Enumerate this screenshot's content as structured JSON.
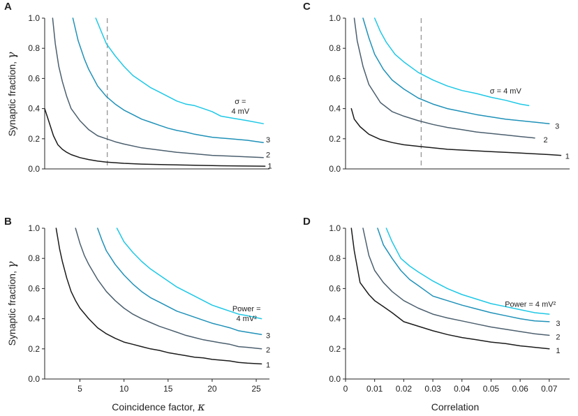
{
  "figure": {
    "ylabel_text": "Synaptic fraction, ",
    "ylabel_symbol": "γ"
  },
  "chart_data": [
    {
      "id": "A",
      "type": "line",
      "panel_label": "A",
      "xlabel_text": "",
      "xlabel_symbol": "",
      "ylabel_text": "Synaptic fraction, ",
      "ylabel_symbol": "γ",
      "xlim": [
        1,
        26.5
      ],
      "ylim": [
        0,
        1
      ],
      "xticks": [],
      "xtick_labels": [],
      "yticks": [
        0,
        0.2,
        0.4,
        0.6,
        0.8,
        1.0
      ],
      "ytick_labels": [
        "0.0",
        "0.2",
        "0.4",
        "0.6",
        "0.8",
        "1.0"
      ],
      "vline": 8.1,
      "annotation": {
        "lines": [
          "σ =",
          "4 mV"
        ],
        "x": 23.2,
        "y": 0.43
      },
      "series": [
        {
          "name": "1",
          "color": "#1a1a1a",
          "x": [
            1,
            1.5,
            2,
            2.5,
            3,
            3.5,
            4,
            5,
            6,
            7,
            8,
            10,
            12,
            15,
            18,
            21,
            24,
            26
          ],
          "y": [
            0.4,
            0.31,
            0.22,
            0.16,
            0.13,
            0.11,
            0.095,
            0.075,
            0.062,
            0.052,
            0.045,
            0.037,
            0.032,
            0.028,
            0.024,
            0.021,
            0.019,
            0.018
          ]
        },
        {
          "name": "2",
          "color": "#4b5f6e",
          "x": [
            1.9,
            2.2,
            2.6,
            3,
            3.5,
            4,
            5,
            6,
            7,
            8,
            9,
            10,
            12,
            14,
            16,
            18,
            20,
            22,
            24,
            25.8
          ],
          "y": [
            1.0,
            0.83,
            0.68,
            0.58,
            0.48,
            0.4,
            0.32,
            0.26,
            0.22,
            0.2,
            0.18,
            0.165,
            0.14,
            0.125,
            0.11,
            0.1,
            0.09,
            0.085,
            0.08,
            0.075
          ]
        },
        {
          "name": "3",
          "color": "#1f91b8",
          "x": [
            4.2,
            4.8,
            5.5,
            6,
            7,
            8,
            9,
            10,
            11,
            12,
            13,
            14,
            15,
            16,
            17,
            18,
            19,
            20,
            21,
            22,
            23,
            24,
            25.8
          ],
          "y": [
            1.0,
            0.85,
            0.73,
            0.66,
            0.55,
            0.48,
            0.43,
            0.39,
            0.36,
            0.33,
            0.31,
            0.29,
            0.27,
            0.255,
            0.245,
            0.23,
            0.22,
            0.21,
            0.205,
            0.2,
            0.195,
            0.19,
            0.175
          ]
        },
        {
          "name": "",
          "color": "#1ec8e6",
          "x": [
            6.8,
            7.5,
            8,
            9,
            10,
            11,
            12,
            13,
            14,
            15,
            16,
            17,
            18,
            19,
            20,
            21,
            22,
            23,
            24,
            25.8
          ],
          "y": [
            1.0,
            0.9,
            0.83,
            0.75,
            0.68,
            0.62,
            0.58,
            0.54,
            0.51,
            0.48,
            0.45,
            0.43,
            0.42,
            0.4,
            0.38,
            0.35,
            0.34,
            0.33,
            0.32,
            0.3
          ]
        }
      ],
      "curve_labels": [
        {
          "text": "1",
          "x": 26.3,
          "y": 0.02
        },
        {
          "text": "2",
          "x": 26.1,
          "y": 0.095
        },
        {
          "text": "3",
          "x": 26.1,
          "y": 0.195
        }
      ]
    },
    {
      "id": "B",
      "type": "line",
      "panel_label": "B",
      "xlabel_text": "Coincidence factor, ",
      "xlabel_symbol": "κ",
      "ylabel_text": "Synaptic fraction, ",
      "ylabel_symbol": "γ",
      "xlim": [
        1,
        26.5
      ],
      "ylim": [
        0,
        1
      ],
      "xticks": [
        5,
        10,
        15,
        20,
        25
      ],
      "xtick_labels": [
        "5",
        "10",
        "15",
        "20",
        "25"
      ],
      "yticks": [
        0,
        0.2,
        0.4,
        0.6,
        0.8,
        1.0
      ],
      "ytick_labels": [
        "0.0",
        "0.2",
        "0.4",
        "0.6",
        "0.8",
        "1.0"
      ],
      "vline": null,
      "annotation": {
        "lines": [
          "Power =",
          "4 mV²"
        ],
        "x": 23.9,
        "y": 0.45
      },
      "series": [
        {
          "name": "1",
          "color": "#1a1a1a",
          "x": [
            2.3,
            2.7,
            3,
            3.5,
            4,
            4.5,
            5,
            6,
            7,
            8,
            9,
            10,
            11,
            12,
            13,
            14,
            15,
            16,
            17,
            18,
            19,
            20,
            21,
            22,
            23,
            24,
            25.6
          ],
          "y": [
            1.0,
            0.86,
            0.78,
            0.67,
            0.58,
            0.52,
            0.47,
            0.4,
            0.34,
            0.3,
            0.27,
            0.245,
            0.23,
            0.215,
            0.2,
            0.19,
            0.175,
            0.165,
            0.155,
            0.145,
            0.14,
            0.13,
            0.125,
            0.12,
            0.11,
            0.105,
            0.1
          ]
        },
        {
          "name": "2",
          "color": "#4b5f6e",
          "x": [
            4.5,
            5,
            5.5,
            6,
            7,
            8,
            9,
            10,
            11,
            12,
            13,
            14,
            15,
            16,
            17,
            18,
            19,
            20,
            21,
            22,
            23,
            24,
            25.6
          ],
          "y": [
            1.0,
            0.9,
            0.82,
            0.76,
            0.66,
            0.58,
            0.52,
            0.47,
            0.43,
            0.4,
            0.375,
            0.35,
            0.33,
            0.31,
            0.29,
            0.275,
            0.26,
            0.25,
            0.24,
            0.23,
            0.215,
            0.21,
            0.2
          ]
        },
        {
          "name": "3",
          "color": "#1f91b8",
          "x": [
            7,
            7.5,
            8,
            9,
            10,
            11,
            12,
            13,
            14,
            15,
            16,
            17,
            18,
            19,
            20,
            21,
            22,
            23,
            24,
            25.6
          ],
          "y": [
            1.0,
            0.92,
            0.85,
            0.76,
            0.69,
            0.63,
            0.58,
            0.54,
            0.51,
            0.48,
            0.45,
            0.43,
            0.41,
            0.39,
            0.37,
            0.355,
            0.34,
            0.32,
            0.31,
            0.295
          ]
        },
        {
          "name": "",
          "color": "#1ec8e6",
          "x": [
            9.2,
            10,
            11,
            12,
            13,
            14,
            15,
            16,
            17,
            18,
            19,
            20,
            21,
            22,
            23,
            24,
            25.6
          ],
          "y": [
            1.0,
            0.91,
            0.84,
            0.78,
            0.73,
            0.69,
            0.65,
            0.61,
            0.58,
            0.55,
            0.52,
            0.49,
            0.47,
            0.45,
            0.43,
            0.42,
            0.4
          ]
        }
      ],
      "curve_labels": [
        {
          "text": "1",
          "x": 26.1,
          "y": 0.095
        },
        {
          "text": "2",
          "x": 26.1,
          "y": 0.195
        },
        {
          "text": "3",
          "x": 26.1,
          "y": 0.29
        }
      ]
    },
    {
      "id": "C",
      "type": "line",
      "panel_label": "C",
      "xlabel_text": "",
      "xlabel_symbol": "",
      "ylabel_text": "",
      "ylabel_symbol": "",
      "xlim": [
        0,
        0.077
      ],
      "ylim": [
        0,
        1
      ],
      "xticks": [],
      "xtick_labels": [],
      "yticks": [
        0,
        0.2,
        0.4,
        0.6,
        0.8,
        1.0
      ],
      "ytick_labels": [
        "0.0",
        "0.2",
        "0.4",
        "0.6",
        "0.8",
        "1.0"
      ],
      "vline": 0.026,
      "annotation": {
        "lines": [
          "σ = 4 mV"
        ],
        "x": 0.055,
        "y": 0.5
      },
      "series": [
        {
          "name": "1",
          "color": "#1a1a1a",
          "x": [
            0.002,
            0.003,
            0.005,
            0.008,
            0.012,
            0.016,
            0.02,
            0.025,
            0.03,
            0.035,
            0.04,
            0.045,
            0.05,
            0.055,
            0.06,
            0.065,
            0.07,
            0.074
          ],
          "y": [
            0.4,
            0.33,
            0.28,
            0.23,
            0.195,
            0.175,
            0.16,
            0.15,
            0.14,
            0.13,
            0.125,
            0.12,
            0.115,
            0.11,
            0.105,
            0.1,
            0.095,
            0.09
          ]
        },
        {
          "name": "2",
          "color": "#4b5f6e",
          "x": [
            0.003,
            0.004,
            0.006,
            0.008,
            0.012,
            0.016,
            0.02,
            0.025,
            0.03,
            0.035,
            0.04,
            0.045,
            0.05,
            0.055,
            0.06,
            0.065
          ],
          "y": [
            1.0,
            0.85,
            0.68,
            0.56,
            0.44,
            0.38,
            0.35,
            0.32,
            0.295,
            0.275,
            0.26,
            0.245,
            0.235,
            0.225,
            0.215,
            0.205
          ]
        },
        {
          "name": "3",
          "color": "#1f91b8",
          "x": [
            0.006,
            0.008,
            0.01,
            0.013,
            0.016,
            0.02,
            0.025,
            0.03,
            0.035,
            0.04,
            0.045,
            0.05,
            0.055,
            0.06,
            0.065,
            0.07
          ],
          "y": [
            1.0,
            0.87,
            0.76,
            0.66,
            0.59,
            0.53,
            0.47,
            0.43,
            0.4,
            0.38,
            0.36,
            0.345,
            0.33,
            0.32,
            0.31,
            0.3
          ]
        },
        {
          "name": "",
          "color": "#1ec8e6",
          "x": [
            0.01,
            0.012,
            0.014,
            0.017,
            0.02,
            0.025,
            0.03,
            0.035,
            0.04,
            0.045,
            0.05,
            0.055,
            0.06,
            0.063
          ],
          "y": [
            1.0,
            0.91,
            0.84,
            0.76,
            0.71,
            0.64,
            0.59,
            0.55,
            0.52,
            0.5,
            0.475,
            0.455,
            0.43,
            0.42
          ]
        }
      ],
      "curve_labels": [
        {
          "text": "1",
          "x": 0.0755,
          "y": 0.085
        },
        {
          "text": "2",
          "x": 0.068,
          "y": 0.195
        },
        {
          "text": "3",
          "x": 0.072,
          "y": 0.285
        }
      ]
    },
    {
      "id": "D",
      "type": "line",
      "panel_label": "D",
      "xlabel_text": "Correlation",
      "xlabel_symbol": "",
      "ylabel_text": "",
      "ylabel_symbol": "",
      "xlim": [
        0,
        0.077
      ],
      "ylim": [
        0,
        1
      ],
      "xticks": [
        0,
        0.01,
        0.02,
        0.03,
        0.04,
        0.05,
        0.06,
        0.07
      ],
      "xtick_labels": [
        "0",
        "0.01",
        "0.02",
        "0.03",
        "0.04",
        "0.05",
        "0.06",
        "0.07"
      ],
      "yticks": [
        0,
        0.2,
        0.4,
        0.6,
        0.8,
        1.0
      ],
      "ytick_labels": [
        "0.0",
        "0.2",
        "0.4",
        "0.6",
        "0.8",
        "1.0"
      ],
      "vline": null,
      "annotation": {
        "lines": [
          "Power = 4 mV²"
        ],
        "x": 0.0635,
        "y": 0.48
      },
      "series": [
        {
          "name": "1",
          "color": "#1a1a1a",
          "x": [
            0.002,
            0.003,
            0.005,
            0.008,
            0.01,
            0.013,
            0.016,
            0.02,
            0.025,
            0.03,
            0.035,
            0.04,
            0.045,
            0.05,
            0.055,
            0.06,
            0.065,
            0.07
          ],
          "y": [
            1.0,
            0.85,
            0.64,
            0.56,
            0.52,
            0.48,
            0.44,
            0.38,
            0.35,
            0.32,
            0.295,
            0.275,
            0.26,
            0.245,
            0.235,
            0.22,
            0.21,
            0.2
          ]
        },
        {
          "name": "2",
          "color": "#4b5f6e",
          "x": [
            0.006,
            0.008,
            0.01,
            0.013,
            0.016,
            0.02,
            0.025,
            0.03,
            0.035,
            0.04,
            0.045,
            0.05,
            0.055,
            0.06,
            0.065,
            0.07
          ],
          "y": [
            1.0,
            0.82,
            0.72,
            0.64,
            0.58,
            0.52,
            0.47,
            0.43,
            0.405,
            0.385,
            0.365,
            0.345,
            0.33,
            0.315,
            0.3,
            0.29
          ]
        },
        {
          "name": "3",
          "color": "#1f91b8",
          "x": [
            0.011,
            0.013,
            0.016,
            0.019,
            0.022,
            0.025,
            0.03,
            0.035,
            0.04,
            0.045,
            0.05,
            0.055,
            0.06,
            0.065,
            0.07
          ],
          "y": [
            1.0,
            0.89,
            0.8,
            0.72,
            0.66,
            0.62,
            0.55,
            0.52,
            0.49,
            0.465,
            0.44,
            0.42,
            0.4,
            0.385,
            0.38
          ]
        },
        {
          "name": "",
          "color": "#1ec8e6",
          "x": [
            0.014,
            0.016,
            0.019,
            0.022,
            0.025,
            0.03,
            0.035,
            0.04,
            0.045,
            0.05,
            0.055,
            0.06,
            0.065,
            0.07
          ],
          "y": [
            1.0,
            0.91,
            0.8,
            0.75,
            0.71,
            0.65,
            0.6,
            0.56,
            0.53,
            0.5,
            0.48,
            0.46,
            0.44,
            0.43
          ]
        }
      ],
      "curve_labels": [
        {
          "text": "1",
          "x": 0.0723,
          "y": 0.19
        },
        {
          "text": "2",
          "x": 0.0723,
          "y": 0.28
        },
        {
          "text": "3",
          "x": 0.0723,
          "y": 0.37
        }
      ]
    }
  ]
}
